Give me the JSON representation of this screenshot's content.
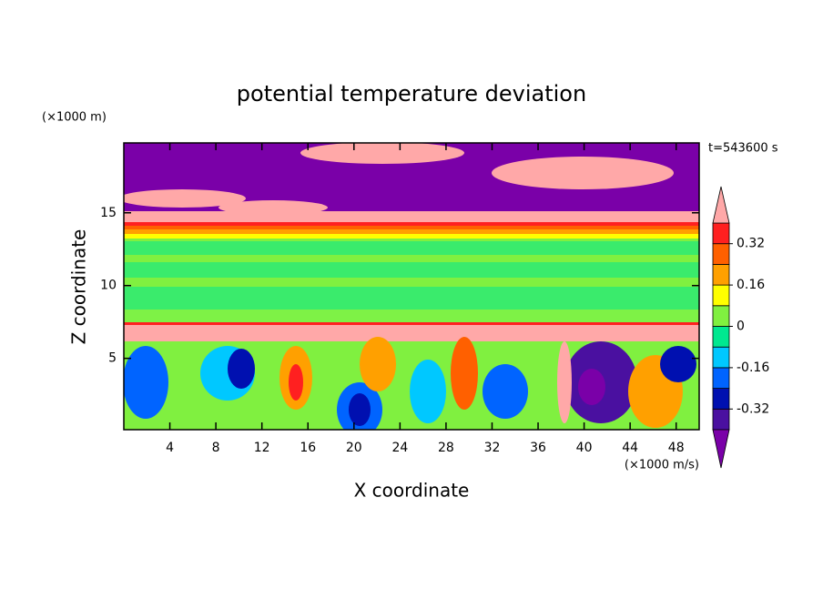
{
  "chart_data": {
    "type": "contour",
    "title": "potential temperature deviation",
    "x_label": "X coordinate",
    "y_label": "Z coordinate",
    "x_unit": "(×1000 m/s)",
    "y_unit": "(×1000 m)",
    "annotation": "t=543600 s",
    "xlim": [
      0,
      50
    ],
    "xticks": [
      4,
      8,
      12,
      16,
      20,
      24,
      28,
      32,
      36,
      40,
      44,
      48
    ],
    "ylim": [
      0.1,
      19.8
    ],
    "yticks": [
      5,
      10,
      15
    ],
    "colorbar": {
      "levels": [
        -0.4,
        -0.32,
        -0.24,
        -0.16,
        -0.08,
        0,
        0.08,
        0.16,
        0.24,
        0.32,
        0.4
      ],
      "ticks": [
        -0.32,
        -0.16,
        0,
        0.16,
        0.32
      ],
      "colors": [
        "#7a00a8",
        "#4a10a0",
        "#0010b0",
        "#0064ff",
        "#00c8ff",
        "#00e890",
        "#80f040",
        "#ffff00",
        "#ffa000",
        "#ff6000",
        "#ff2020",
        "#ffa8a8"
      ]
    }
  }
}
